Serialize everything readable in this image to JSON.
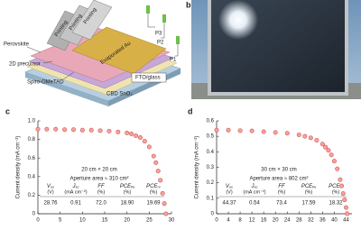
{
  "panel_labels": [
    "b",
    "c",
    "d"
  ],
  "diagram": {
    "layers": [
      "Perovskite",
      "2D precursor",
      "Spiro-OMeTAD",
      "CBD SnO₂",
      "FTO/glass"
    ],
    "printing": [
      "Printing",
      "Printing",
      "Printing"
    ],
    "top_layer": "Evaporated Au",
    "scribes": [
      "P3",
      "P2",
      "P1"
    ]
  },
  "chart_data": [
    {
      "type": "scatter",
      "y_label": "Current density (mA cm⁻²)",
      "annotations": [
        "20 cm × 20 cm",
        "Aperture area ≈ 310 cm²"
      ],
      "x": [
        0,
        2,
        4,
        6,
        8,
        10,
        12,
        14,
        16,
        18,
        20,
        21,
        22,
        23,
        24,
        25,
        26,
        26.5,
        27,
        27.5,
        28,
        28.4,
        28.76
      ],
      "values": [
        0.91,
        0.91,
        0.91,
        0.905,
        0.905,
        0.9,
        0.9,
        0.895,
        0.89,
        0.88,
        0.87,
        0.86,
        0.84,
        0.82,
        0.78,
        0.72,
        0.62,
        0.55,
        0.46,
        0.36,
        0.22,
        0.11,
        0
      ],
      "color": "#d9534f",
      "xlim": [
        0,
        30
      ],
      "xticks": [
        0,
        5,
        10,
        15,
        20,
        25,
        30
      ],
      "ylim": [
        0,
        1.0
      ],
      "yticks": [
        0,
        0.2,
        0.4,
        0.6,
        0.8,
        {
          "value": 1.0,
          "label": "1.0"
        }
      ],
      "table": {
        "headers": [
          {
            "symbol": "V",
            "sub": "oc",
            "unit": "(V)"
          },
          {
            "symbol": "J",
            "sub": "sc",
            "unit": "(mA cm⁻²)"
          },
          {
            "symbol": "FF",
            "sub": "",
            "unit": "(%)"
          },
          {
            "symbol": "PCE",
            "sub": "fw",
            "unit": "(%)"
          },
          {
            "symbol": "PCE",
            "sub": "rv",
            "unit": "(%)"
          }
        ],
        "values": [
          "28.76",
          "0.91",
          "72.0",
          "18.90",
          "19.69"
        ]
      }
    },
    {
      "type": "scatter",
      "y_label": "Current density (mA cm⁻²)",
      "annotations": [
        "30 cm × 30 cm",
        "Aperture area ≈ 802 cm²"
      ],
      "x": [
        0,
        4,
        8,
        12,
        16,
        20,
        24,
        28,
        30,
        32,
        34,
        36,
        37,
        38,
        39,
        40,
        41,
        42,
        42.5,
        43,
        43.5,
        44,
        44.37
      ],
      "values": [
        0.54,
        0.54,
        0.537,
        0.535,
        0.53,
        0.525,
        0.52,
        0.51,
        0.5,
        0.49,
        0.475,
        0.45,
        0.43,
        0.41,
        0.38,
        0.34,
        0.29,
        0.22,
        0.18,
        0.13,
        0.09,
        0.04,
        0
      ],
      "color": "#d9534f",
      "xlim": [
        0,
        46
      ],
      "xticks": [
        0,
        4,
        8,
        12,
        16,
        20,
        24,
        28,
        32,
        36,
        40,
        44
      ],
      "ylim": [
        0,
        0.6
      ],
      "yticks": [
        0,
        0.1,
        0.2,
        0.3,
        0.4,
        0.5,
        0.6
      ],
      "table": {
        "headers": [
          {
            "symbol": "V",
            "sub": "oc",
            "unit": "(V)"
          },
          {
            "symbol": "J",
            "sub": "sc",
            "unit": "(mA cm⁻²)"
          },
          {
            "symbol": "FF",
            "sub": "",
            "unit": "(%)"
          },
          {
            "symbol": "PCE",
            "sub": "fw",
            "unit": "(%)"
          },
          {
            "symbol": "PCE",
            "sub": "rv",
            "unit": "(%)"
          }
        ],
        "values": [
          "44.37",
          "0.54",
          "73.4",
          "17.59",
          "18.32"
        ]
      }
    }
  ]
}
